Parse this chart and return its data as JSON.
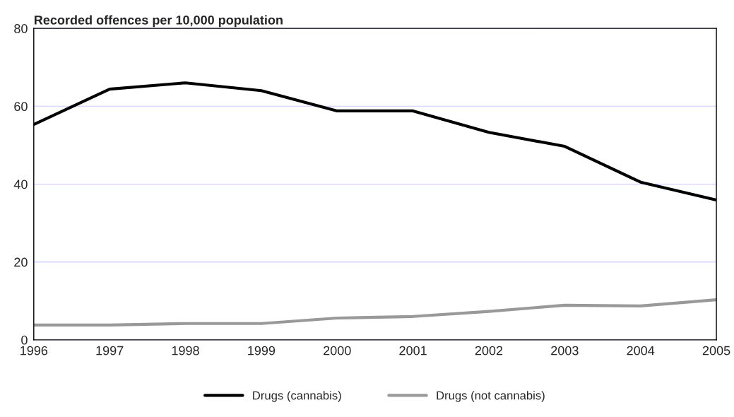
{
  "chart_data": {
    "type": "line",
    "title": "Recorded offences per 10,000 population",
    "x": [
      1996,
      1997,
      1998,
      1999,
      2000,
      2001,
      2002,
      2003,
      2004,
      2005
    ],
    "series": [
      {
        "name": "Drugs (cannabis)",
        "color": "#000000",
        "values": [
          55.3,
          64.4,
          66.0,
          64.0,
          58.8,
          58.8,
          53.3,
          49.7,
          40.5,
          35.9
        ]
      },
      {
        "name": "Drugs (not cannabis)",
        "color": "#999999",
        "values": [
          3.8,
          3.8,
          4.2,
          4.2,
          5.6,
          6.0,
          7.3,
          8.9,
          8.7,
          10.3
        ]
      }
    ],
    "xlim": [
      1996,
      2005
    ],
    "xticks": [
      1996,
      1997,
      1998,
      1999,
      2000,
      2001,
      2002,
      2003,
      2004,
      2005
    ],
    "ylim": [
      0,
      80
    ],
    "yticks": [
      0,
      20,
      40,
      60,
      80
    ],
    "grid": "y",
    "legend": "bottom",
    "marker": "none",
    "line_style": "solid"
  }
}
